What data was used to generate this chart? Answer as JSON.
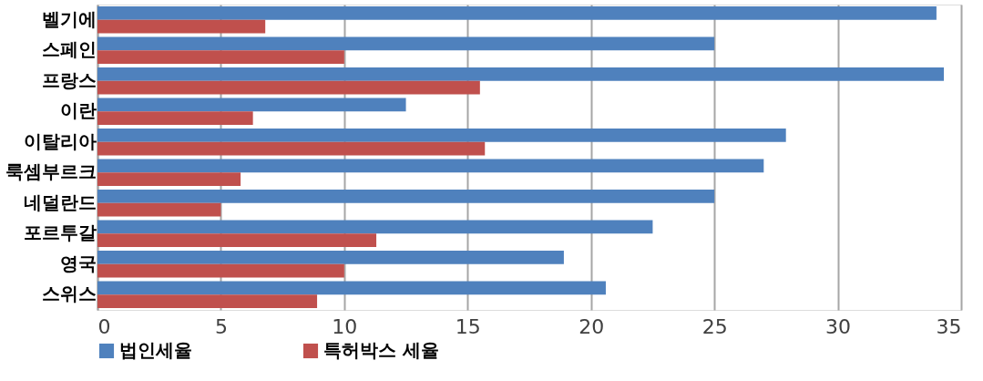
{
  "chart_data": {
    "type": "bar",
    "orientation": "horizontal",
    "categories": [
      "벨기에",
      "스페인",
      "프랑스",
      "이란",
      "이탈리아",
      "룩셈부르크",
      "네덜란드",
      "포르투갈",
      "영국",
      "스위스"
    ],
    "series": [
      {
        "name": "법인세율",
        "color": "#4f81bd",
        "values": [
          34.0,
          25.0,
          34.3,
          12.5,
          27.9,
          27.0,
          25.0,
          22.5,
          18.9,
          20.6
        ]
      },
      {
        "name": "특허박스 세율",
        "color": "#c0504d",
        "values": [
          6.8,
          10.0,
          15.5,
          6.3,
          15.7,
          5.8,
          5.0,
          11.3,
          10.0,
          8.9
        ]
      }
    ],
    "xlim": [
      0,
      35
    ],
    "xticks": [
      0,
      5,
      10,
      15,
      20,
      25,
      30,
      35
    ],
    "grid": "x",
    "legend": "bottom"
  }
}
